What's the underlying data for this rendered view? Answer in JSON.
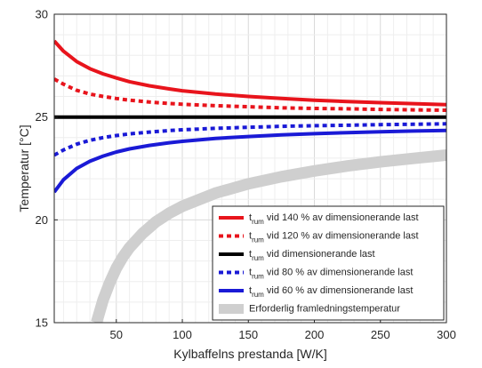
{
  "chart_data": {
    "type": "line",
    "xlabel": "Kylbaffelns prestanda [W/K]",
    "ylabel": "Temperatur [°C]",
    "xlim": [
      3,
      300
    ],
    "ylim": [
      15,
      30
    ],
    "xticks": [
      50,
      100,
      150,
      200,
      250,
      300
    ],
    "yticks": [
      15,
      20,
      25,
      30
    ],
    "grid": true,
    "minor_grid": true,
    "legend_position": "bottom-right",
    "series": [
      {
        "name_prefix": "t",
        "name_sub": "rum",
        "name_rest": " vid  140 % av dimensionerande last",
        "color": "#e8141c",
        "style": "solid",
        "x": [
          3,
          10,
          20,
          30,
          40,
          50,
          60,
          75,
          90,
          100,
          125,
          150,
          175,
          200,
          225,
          250,
          275,
          300
        ],
        "y": [
          28.7,
          28.2,
          27.7,
          27.35,
          27.1,
          26.9,
          26.72,
          26.52,
          26.37,
          26.28,
          26.12,
          26.0,
          25.9,
          25.82,
          25.75,
          25.7,
          25.65,
          25.6
        ]
      },
      {
        "name_prefix": "t",
        "name_sub": "rum",
        "name_rest": " vid 120 % av dimensionerande last",
        "color": "#e8141c",
        "style": "dotted",
        "x": [
          3,
          10,
          20,
          30,
          40,
          50,
          60,
          75,
          90,
          100,
          125,
          150,
          175,
          200,
          225,
          250,
          275,
          300
        ],
        "y": [
          26.85,
          26.6,
          26.3,
          26.12,
          26.0,
          25.9,
          25.82,
          25.73,
          25.66,
          25.62,
          25.55,
          25.5,
          25.45,
          25.42,
          25.4,
          25.37,
          25.35,
          25.33
        ]
      },
      {
        "name_prefix": "t",
        "name_sub": "rum",
        "name_rest": " vid dimensionerande last",
        "color": "#000000",
        "style": "solid",
        "x": [
          3,
          300
        ],
        "y": [
          25.0,
          25.0
        ]
      },
      {
        "name_prefix": "t",
        "name_sub": "rum",
        "name_rest": " vid 80 % av dimensionerande last",
        "color": "#1a1ad6",
        "style": "dotted",
        "x": [
          3,
          10,
          20,
          30,
          40,
          50,
          60,
          75,
          90,
          100,
          125,
          150,
          175,
          200,
          225,
          250,
          275,
          300
        ],
        "y": [
          23.15,
          23.4,
          23.68,
          23.87,
          24.0,
          24.1,
          24.18,
          24.27,
          24.34,
          24.38,
          24.45,
          24.5,
          24.55,
          24.58,
          24.6,
          24.63,
          24.65,
          24.67
        ]
      },
      {
        "name_prefix": "t",
        "name_sub": "rum",
        "name_rest": " vid 60 % av dimensionerande last",
        "color": "#1a1ad6",
        "style": "solid",
        "x": [
          3,
          10,
          20,
          30,
          40,
          50,
          60,
          75,
          90,
          100,
          125,
          150,
          175,
          200,
          225,
          250,
          275,
          300
        ],
        "y": [
          21.35,
          21.95,
          22.5,
          22.85,
          23.1,
          23.3,
          23.45,
          23.62,
          23.75,
          23.82,
          23.96,
          24.05,
          24.13,
          24.19,
          24.24,
          24.28,
          24.32,
          24.35
        ]
      },
      {
        "name_prefix": "Erforderlig framledningstemperatur",
        "name_sub": "",
        "name_rest": "",
        "color": "#cfcfcf",
        "style": "thick",
        "x": [
          35,
          40,
          45,
          50,
          55,
          60,
          70,
          80,
          90,
          100,
          125,
          150,
          175,
          200,
          225,
          250,
          275,
          300
        ],
        "y": [
          15.0,
          16.1,
          16.95,
          17.65,
          18.2,
          18.65,
          19.35,
          19.9,
          20.32,
          20.66,
          21.3,
          21.75,
          22.1,
          22.38,
          22.62,
          22.82,
          22.99,
          23.15
        ]
      }
    ]
  }
}
